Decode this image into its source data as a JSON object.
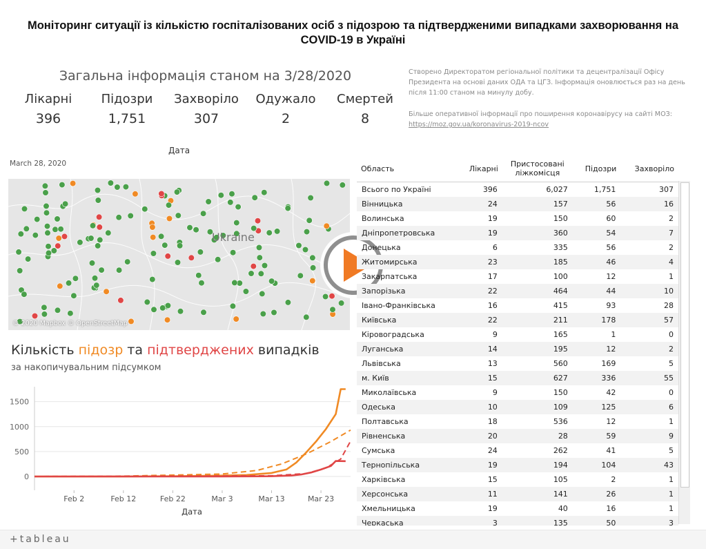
{
  "page_title": "Моніторинг ситуації із кількістю госпіталізованих осіб з підозрою та підтвердженими випадками захворювання на COVID-19 в Україні",
  "info": {
    "heading": "Загальна інформація станом на 3/28/2020",
    "kpis": [
      {
        "label": "Лікарні",
        "value": "396"
      },
      {
        "label": "Підозри",
        "value": "1,751"
      },
      {
        "label": "Захворіло",
        "value": "307"
      },
      {
        "label": "Одужало",
        "value": "2"
      },
      {
        "label": "Смертей",
        "value": "8"
      }
    ],
    "note": "Створено Директоратом регіональної політики та децентралізації Офісу Президента на основі даних ОДА та ЦГЗ. Інформація оновлюється раз на день після 11:00 станом на минулу добу.",
    "more": "Більше оперативної інформації про поширення коронавірусу на сайті МОЗ:",
    "link": "https://moz.gov.ua/koronavirus-2019-ncov"
  },
  "map": {
    "label": "Дата",
    "date": "March 28, 2020",
    "country_label": "Ukraine",
    "attribution": "© 2020 Mapbox © OpenStreetMap",
    "colors": {
      "hospital": "#4aa04a",
      "suspected": "#f08a24",
      "confirmed": "#e04646"
    }
  },
  "chart_title": {
    "prefix": "Кількість ",
    "suspected": "підозр",
    "mid": " та ",
    "confirmed": "підтверджених",
    "suffix": " випадків"
  },
  "chart_subtitle": "за накопичувальним підсумком",
  "chart_data": {
    "type": "line",
    "xlabel": "Дата",
    "x_ticks": [
      "Feb 2",
      "Feb 12",
      "Feb 22",
      "Mar 3",
      "Mar 13",
      "Mar 23"
    ],
    "y_ticks": [
      0,
      500,
      1000,
      1500
    ],
    "ylim": [
      0,
      1800
    ],
    "grid": true,
    "series": [
      {
        "kind": "actual",
        "color": "#f08a24",
        "points": [
          [
            "Jan 25",
            0
          ],
          [
            "Feb 2",
            0
          ],
          [
            "Feb 12",
            2
          ],
          [
            "Feb 22",
            6
          ],
          [
            "Mar 3",
            18
          ],
          [
            "Mar 8",
            30
          ],
          [
            "Mar 13",
            70
          ],
          [
            "Mar 16",
            140
          ],
          [
            "Mar 18",
            280
          ],
          [
            "Mar 20",
            480
          ],
          [
            "Mar 22",
            700
          ],
          [
            "Mar 24",
            950
          ],
          [
            "Mar 26",
            1250
          ],
          [
            "Mar 27",
            1751
          ],
          [
            "Mar 28",
            1751
          ]
        ]
      },
      {
        "kind": "trend",
        "dashed": true,
        "color": "#f08a24",
        "points": [
          [
            "Jan 25",
            0
          ],
          [
            "Feb 12",
            8
          ],
          [
            "Mar 3",
            50
          ],
          [
            "Mar 10",
            120
          ],
          [
            "Mar 15",
            250
          ],
          [
            "Mar 20",
            450
          ],
          [
            "Mar 25",
            700
          ],
          [
            "Mar 29",
            930
          ]
        ]
      },
      {
        "kind": "actual",
        "color": "#e04646",
        "points": [
          [
            "Jan 25",
            0
          ],
          [
            "Mar 3",
            0
          ],
          [
            "Mar 13",
            5
          ],
          [
            "Mar 17",
            20
          ],
          [
            "Mar 19",
            40
          ],
          [
            "Mar 21",
            80
          ],
          [
            "Mar 23",
            140
          ],
          [
            "Mar 25",
            210
          ],
          [
            "Mar 26",
            310
          ],
          [
            "Mar 28",
            307
          ]
        ]
      },
      {
        "kind": "trend",
        "dashed": true,
        "color": "#e04646",
        "points": [
          [
            "Jan 25",
            0
          ],
          [
            "Mar 13",
            15
          ],
          [
            "Mar 20",
            60
          ],
          [
            "Mar 24",
            170
          ],
          [
            "Mar 27",
            350
          ],
          [
            "Mar 29",
            710
          ]
        ]
      }
    ]
  },
  "table": {
    "headers": [
      "Область",
      "Лікарні",
      "Пристосовані ліжкомісця",
      "Підозри",
      "Захворіло"
    ],
    "total": [
      "Всього по Україні",
      "396",
      "6,027",
      "1,751",
      "307"
    ],
    "rows": [
      [
        "Вінницька",
        "24",
        "157",
        "56",
        "16"
      ],
      [
        "Волинська",
        "19",
        "150",
        "60",
        "2"
      ],
      [
        "Дніпропетровська",
        "19",
        "360",
        "54",
        "7"
      ],
      [
        "Донецька",
        "6",
        "335",
        "56",
        "2"
      ],
      [
        "Житомирська",
        "23",
        "185",
        "46",
        "4"
      ],
      [
        "Закарпатська",
        "17",
        "100",
        "12",
        "1"
      ],
      [
        "Запорізька",
        "22",
        "464",
        "44",
        "10"
      ],
      [
        "Івано-Франківська",
        "16",
        "415",
        "93",
        "28"
      ],
      [
        "Київська",
        "22",
        "211",
        "178",
        "57"
      ],
      [
        "Кіровоградська",
        "9",
        "165",
        "1",
        "0"
      ],
      [
        "Луганська",
        "14",
        "195",
        "12",
        "2"
      ],
      [
        "Львівська",
        "13",
        "560",
        "169",
        "5"
      ],
      [
        "м. Київ",
        "15",
        "627",
        "336",
        "55"
      ],
      [
        "Миколаївська",
        "9",
        "150",
        "42",
        "0"
      ],
      [
        "Одеська",
        "10",
        "109",
        "125",
        "6"
      ],
      [
        "Полтавська",
        "18",
        "536",
        "12",
        "1"
      ],
      [
        "Рівненська",
        "20",
        "28",
        "59",
        "9"
      ],
      [
        "Сумська",
        "24",
        "262",
        "41",
        "5"
      ],
      [
        "Тернопільська",
        "19",
        "194",
        "104",
        "43"
      ],
      [
        "Харківська",
        "15",
        "105",
        "2",
        "1"
      ],
      [
        "Херсонська",
        "11",
        "141",
        "26",
        "1"
      ],
      [
        "Хмельницька",
        "19",
        "40",
        "16",
        "1"
      ],
      [
        "Черкаська",
        "3",
        "135",
        "50",
        "3"
      ]
    ]
  },
  "footer": {
    "brand": "+tableau"
  }
}
